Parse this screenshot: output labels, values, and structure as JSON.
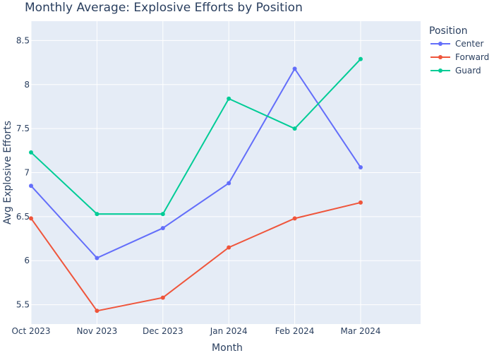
{
  "chart_data": {
    "type": "line",
    "title": "Monthly Average: Explosive Efforts by Position",
    "xlabel": "Month",
    "ylabel": "Avg Explosive Efforts",
    "categories": [
      "Oct 2023",
      "Nov 2023",
      "Dec 2023",
      "Jan 2024",
      "Feb 2024",
      "Mar 2024"
    ],
    "yticks": [
      5.5,
      6,
      6.5,
      7,
      7.5,
      8,
      8.5
    ],
    "ytick_labels": [
      "5.5",
      "6",
      "6.5",
      "7",
      "7.5",
      "8",
      "8.5"
    ],
    "ylim": [
      5.28,
      8.72
    ],
    "legend_title": "Position",
    "legend_position": "top-right",
    "grid": true,
    "series": [
      {
        "name": "Center",
        "color": "#636efa",
        "values": [
          6.85,
          6.03,
          6.37,
          6.88,
          8.18,
          7.06
        ]
      },
      {
        "name": "Forward",
        "color": "#ef553b",
        "values": [
          6.48,
          5.43,
          5.58,
          6.15,
          6.48,
          6.66
        ]
      },
      {
        "name": "Guard",
        "color": "#00cc96",
        "values": [
          7.23,
          6.53,
          6.53,
          7.84,
          7.5,
          8.29
        ]
      }
    ]
  }
}
